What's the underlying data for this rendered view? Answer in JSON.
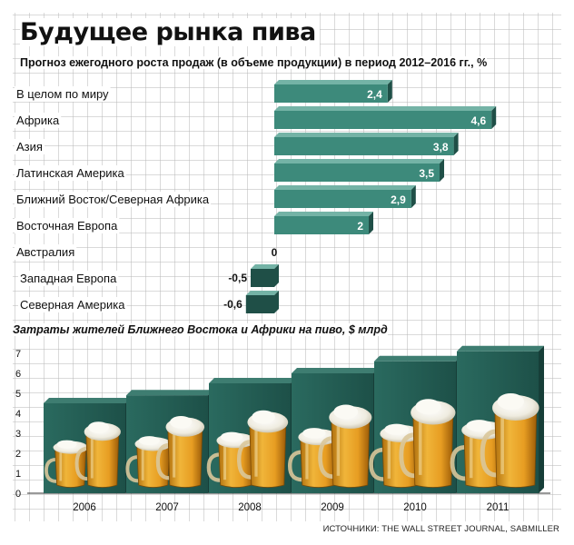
{
  "title": "Будущее рынка пива",
  "subtitle": "Прогноз ежегодного роста продаж (в объеме продукции) в период 2012–2016 гг., %",
  "source": "ИСТОЧНИКИ: THE WALL STREET JOURNAL, SABMILLER",
  "colors": {
    "bar_face": "#3d8a7b",
    "bar_side": "#1f4f47",
    "bar_top": "#74b3a6",
    "grid": "#b5b5b5",
    "beer": "#e0a022",
    "foam": "#f4f1e6"
  },
  "chart_data": [
    {
      "type": "bar",
      "orientation": "horizontal",
      "categories": [
        "В целом по миру",
        "Африка",
        "Азия",
        "Латинская Америка",
        "Ближний Восток/Северная Африка",
        "Восточная Европа",
        "Австралия",
        "Западная Европа",
        "Северная Америка"
      ],
      "values": [
        2.4,
        4.6,
        3.8,
        3.5,
        2.9,
        2,
        0,
        -0.5,
        -0.6
      ],
      "value_labels": [
        "2,4",
        "4,6",
        "3,8",
        "3,5",
        "2,9",
        "2",
        "0",
        "-0,5",
        "-0,6"
      ],
      "xlim": [
        -0.6,
        4.6
      ]
    },
    {
      "type": "bar",
      "title": "Затраты жителей Ближнего Востока и Африки на пиво, $ млрд",
      "categories": [
        "2006",
        "2007",
        "2008",
        "2009",
        "2010",
        "2011"
      ],
      "values": [
        4.5,
        4.9,
        5.5,
        6.0,
        6.6,
        7.1
      ],
      "yticks": [
        "0",
        "1",
        "2",
        "3",
        "4",
        "5",
        "6",
        "7"
      ],
      "ylim": [
        0,
        7.5
      ],
      "grid": true
    }
  ]
}
